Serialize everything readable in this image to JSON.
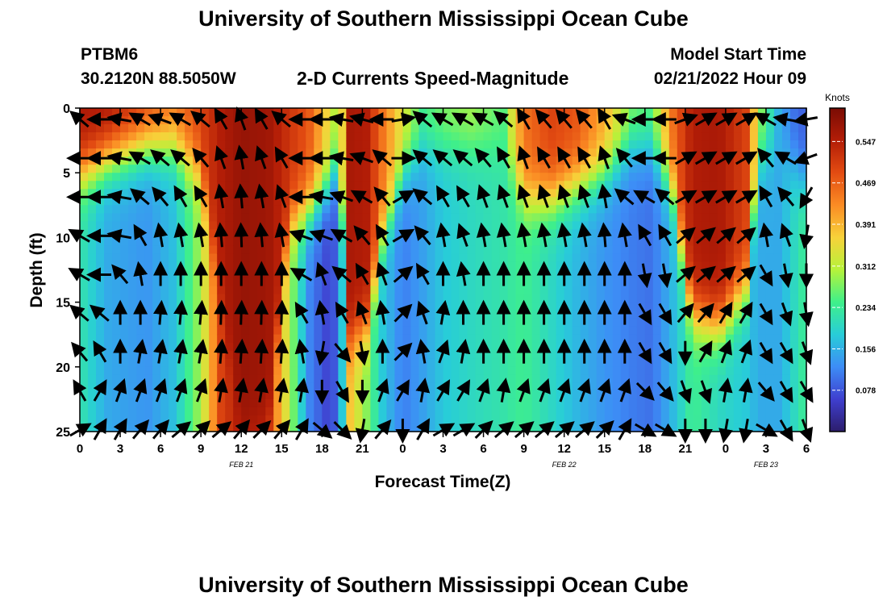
{
  "header": {
    "title": "University of Southern Mississippi Ocean Cube",
    "station": "PTBM6",
    "coords": "30.2120N  88.5050W",
    "product": "2-D Currents Speed-Magnitude",
    "model_start_label": "Model Start Time",
    "model_start_value": "02/21/2022 Hour 09"
  },
  "footer": {
    "title": "University of Southern Mississippi Ocean Cube"
  },
  "chart_data": {
    "type": "heatmap",
    "xlabel": "Forecast Time(Z)",
    "ylabel": "Depth (ft)",
    "x_range_hours": [
      0,
      54
    ],
    "y_range": [
      0,
      25
    ],
    "y_ticks": [
      0,
      5,
      10,
      15,
      20,
      25
    ],
    "x_ticks": [
      {
        "h": 0,
        "label": "0"
      },
      {
        "h": 3,
        "label": "3"
      },
      {
        "h": 6,
        "label": "6"
      },
      {
        "h": 9,
        "label": "9"
      },
      {
        "h": 12,
        "label": "12"
      },
      {
        "h": 15,
        "label": "15"
      },
      {
        "h": 18,
        "label": "18"
      },
      {
        "h": 21,
        "label": "21"
      },
      {
        "h": 24,
        "label": "0"
      },
      {
        "h": 27,
        "label": "3"
      },
      {
        "h": 30,
        "label": "6"
      },
      {
        "h": 33,
        "label": "9"
      },
      {
        "h": 36,
        "label": "12"
      },
      {
        "h": 39,
        "label": "15"
      },
      {
        "h": 42,
        "label": "18"
      },
      {
        "h": 45,
        "label": "21"
      },
      {
        "h": 48,
        "label": "0"
      },
      {
        "h": 51,
        "label": "3"
      },
      {
        "h": 54,
        "label": "6"
      }
    ],
    "date_labels": [
      {
        "h": 12,
        "label": "FEB 21"
      },
      {
        "h": 36,
        "label": "FEB 22"
      },
      {
        "h": 51,
        "label": "FEB 23"
      }
    ],
    "colorbar": {
      "unit": "Knots",
      "min": 0,
      "max": 0.61,
      "ticks": [
        0.078,
        0.156,
        0.234,
        0.312,
        0.391,
        0.469,
        0.547
      ],
      "colors": [
        "#2c1d6b",
        "#3f3fcf",
        "#3d8df6",
        "#28cdd8",
        "#3ff08a",
        "#b6f23a",
        "#f7d23a",
        "#fb8c24",
        "#e34c12",
        "#b31d07",
        "#7a0c04"
      ]
    },
    "speed_profile": [
      {
        "h": 0,
        "surface": 0.56,
        "half": 5,
        "deep": 0.22
      },
      {
        "h": 2,
        "surface": 0.56,
        "half": 4,
        "deep": 0.15
      },
      {
        "h": 5,
        "surface": 0.5,
        "half": 3,
        "deep": 0.13
      },
      {
        "h": 7,
        "surface": 0.45,
        "half": 3,
        "deep": 0.17
      },
      {
        "h": 9,
        "surface": 0.5,
        "half": 5,
        "deep": 0.3
      },
      {
        "h": 10.5,
        "surface": 0.55,
        "half": 15,
        "deep": 0.5
      },
      {
        "h": 12,
        "surface": 0.58,
        "half": 25,
        "deep": 0.55
      },
      {
        "h": 14,
        "surface": 0.57,
        "half": 25,
        "deep": 0.5
      },
      {
        "h": 15.5,
        "surface": 0.52,
        "half": 9,
        "deep": 0.32
      },
      {
        "h": 17,
        "surface": 0.48,
        "half": 8,
        "deep": 0.12
      },
      {
        "h": 18.5,
        "surface": 0.35,
        "half": 6,
        "deep": 0.06
      },
      {
        "h": 19.3,
        "surface": 0.28,
        "half": 4,
        "deep": 0.1
      },
      {
        "h": 20,
        "surface": 0.56,
        "half": 18,
        "deep": 0.38
      },
      {
        "h": 21.3,
        "surface": 0.55,
        "half": 17,
        "deep": 0.28
      },
      {
        "h": 22.5,
        "surface": 0.45,
        "half": 10,
        "deep": 0.18
      },
      {
        "h": 24,
        "surface": 0.34,
        "half": 5,
        "deep": 0.11
      },
      {
        "h": 25.5,
        "surface": 0.25,
        "half": 3,
        "deep": 0.14
      },
      {
        "h": 27,
        "surface": 0.28,
        "half": 3,
        "deep": 0.18
      },
      {
        "h": 29,
        "surface": 0.3,
        "half": 3,
        "deep": 0.2
      },
      {
        "h": 31.5,
        "surface": 0.26,
        "half": 3,
        "deep": 0.22
      },
      {
        "h": 33,
        "surface": 0.45,
        "half": 7,
        "deep": 0.24
      },
      {
        "h": 35,
        "surface": 0.5,
        "half": 7,
        "deep": 0.2
      },
      {
        "h": 37,
        "surface": 0.48,
        "half": 6,
        "deep": 0.16
      },
      {
        "h": 39,
        "surface": 0.4,
        "half": 5,
        "deep": 0.13
      },
      {
        "h": 41,
        "surface": 0.28,
        "half": 3,
        "deep": 0.11
      },
      {
        "h": 42.5,
        "surface": 0.26,
        "half": 3,
        "deep": 0.1
      },
      {
        "h": 44,
        "surface": 0.45,
        "half": 6,
        "deep": 0.16
      },
      {
        "h": 45.5,
        "surface": 0.55,
        "half": 16,
        "deep": 0.24
      },
      {
        "h": 47.5,
        "surface": 0.56,
        "half": 17,
        "deep": 0.2
      },
      {
        "h": 49.5,
        "surface": 0.5,
        "half": 14,
        "deep": 0.18
      },
      {
        "h": 50.5,
        "surface": 0.3,
        "half": 4,
        "deep": 0.15
      },
      {
        "h": 52,
        "surface": 0.15,
        "half": 3,
        "deep": 0.15
      },
      {
        "h": 53.5,
        "surface": 0.08,
        "half": 5,
        "deep": 0.22
      },
      {
        "h": 54,
        "surface": 0.1,
        "half": 6,
        "deep": 0.24
      }
    ],
    "vector_hours": [
      0,
      1.5,
      3,
      4.5,
      6,
      7.5,
      9,
      10.5,
      12,
      13.5,
      15,
      16.5,
      18,
      19.5,
      21,
      22.5,
      24,
      25.5,
      27,
      28.5,
      30,
      31.5,
      33,
      34.5,
      36,
      37.5,
      39,
      40.5,
      42,
      43.5,
      45,
      46.5,
      48,
      49.5,
      51,
      52.5,
      54
    ],
    "vector_depths": [
      0,
      3,
      6,
      9,
      12,
      15,
      18,
      21,
      24
    ],
    "vector_angles_deg": [
      [
        140,
        180,
        180,
        150,
        150,
        140,
        130,
        120,
        30
      ],
      [
        180,
        180,
        180,
        180,
        180,
        140,
        120,
        60,
        60
      ],
      [
        170,
        170,
        170,
        170,
        130,
        90,
        90,
        70,
        60
      ],
      [
        150,
        150,
        140,
        120,
        100,
        90,
        80,
        70,
        50
      ],
      [
        160,
        140,
        130,
        100,
        90,
        85,
        80,
        70,
        50
      ],
      [
        150,
        140,
        120,
        100,
        90,
        85,
        80,
        70,
        40
      ],
      [
        140,
        130,
        120,
        100,
        90,
        85,
        80,
        70,
        45
      ],
      [
        120,
        110,
        100,
        95,
        90,
        88,
        85,
        80,
        40
      ],
      [
        110,
        100,
        95,
        92,
        90,
        88,
        86,
        80,
        50
      ],
      [
        120,
        110,
        100,
        95,
        90,
        88,
        86,
        80,
        45
      ],
      [
        140,
        120,
        110,
        100,
        90,
        88,
        86,
        80,
        50
      ],
      [
        180,
        180,
        180,
        160,
        150,
        120,
        100,
        80,
        60
      ],
      [
        180,
        180,
        170,
        160,
        110,
        100,
        260,
        270,
        320
      ],
      [
        170,
        170,
        160,
        150,
        140,
        120,
        310,
        300,
        315
      ],
      [
        165,
        160,
        150,
        130,
        120,
        110,
        280,
        270,
        260
      ],
      [
        180,
        140,
        130,
        120,
        110,
        100,
        90,
        70,
        50
      ],
      [
        10,
        0,
        30,
        30,
        40,
        45,
        45,
        60,
        270
      ],
      [
        140,
        140,
        140,
        130,
        120,
        110,
        100,
        80,
        60
      ],
      [
        150,
        140,
        120,
        100,
        90,
        80,
        70,
        60,
        30
      ],
      [
        150,
        140,
        120,
        110,
        100,
        90,
        80,
        60,
        30
      ],
      [
        150,
        130,
        110,
        100,
        90,
        90,
        90,
        70,
        45
      ],
      [
        140,
        120,
        110,
        100,
        90,
        90,
        90,
        80,
        40
      ],
      [
        120,
        110,
        110,
        100,
        90,
        90,
        90,
        70,
        40
      ],
      [
        130,
        120,
        110,
        100,
        90,
        90,
        90,
        70,
        40
      ],
      [
        130,
        120,
        110,
        100,
        90,
        90,
        90,
        70,
        40
      ],
      [
        130,
        120,
        110,
        100,
        90,
        90,
        90,
        70,
        40
      ],
      [
        120,
        110,
        100,
        95,
        90,
        90,
        90,
        70,
        45
      ],
      [
        160,
        130,
        140,
        100,
        90,
        90,
        90,
        70,
        60
      ],
      [
        180,
        180,
        150,
        120,
        280,
        300,
        300,
        315,
        330
      ],
      [
        180,
        180,
        140,
        120,
        280,
        300,
        300,
        310,
        330
      ],
      [
        20,
        30,
        30,
        40,
        40,
        50,
        270,
        290,
        270
      ],
      [
        30,
        30,
        30,
        40,
        40,
        50,
        60,
        290,
        270
      ],
      [
        30,
        30,
        30,
        40,
        40,
        60,
        70,
        80,
        260
      ],
      [
        30,
        30,
        30,
        40,
        40,
        60,
        70,
        80,
        260
      ],
      [
        150,
        130,
        120,
        100,
        300,
        300,
        300,
        310,
        330
      ],
      [
        170,
        150,
        130,
        110,
        280,
        290,
        300,
        300,
        300
      ],
      [
        190,
        200,
        240,
        260,
        270,
        280,
        290,
        300,
        290
      ]
    ]
  }
}
